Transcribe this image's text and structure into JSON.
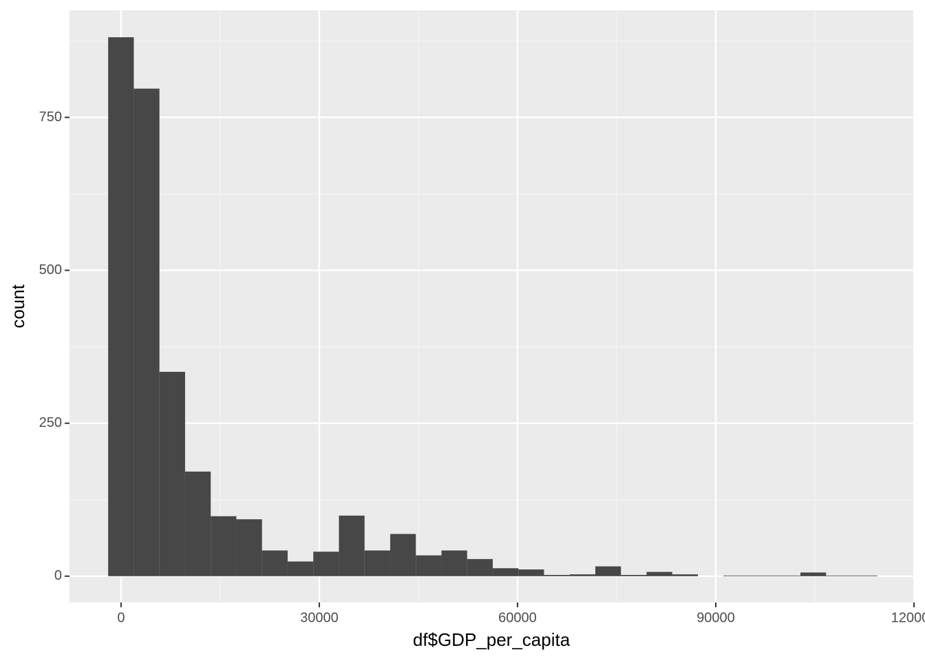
{
  "chart_data": {
    "type": "histogram",
    "x_label": "df$GDP_per_capita",
    "y_label": "count",
    "bins": [
      -1950,
      1930,
      5810,
      9690,
      13570,
      17450,
      21330,
      25210,
      29090,
      32970,
      36850,
      40730,
      44610,
      48490,
      52370,
      56250,
      60130,
      64010,
      67890,
      71770,
      75650,
      79530,
      83410,
      87290,
      91170,
      95050,
      98930,
      102810,
      106690,
      110570,
      114450
    ],
    "values": [
      881,
      797,
      334,
      171,
      98,
      93,
      42,
      24,
      40,
      99,
      42,
      69,
      34,
      42,
      28,
      13,
      11,
      2,
      3,
      16,
      2,
      7,
      3,
      0,
      1,
      1,
      1,
      6,
      1,
      1
    ],
    "color": "#474747",
    "xlim": [
      -7800,
      120100
    ],
    "xticks": [
      0,
      30000,
      60000,
      90000,
      120000
    ],
    "ylim": [
      -43,
      925
    ],
    "yticks": [
      0,
      250,
      500,
      750
    ],
    "grid": true
  }
}
